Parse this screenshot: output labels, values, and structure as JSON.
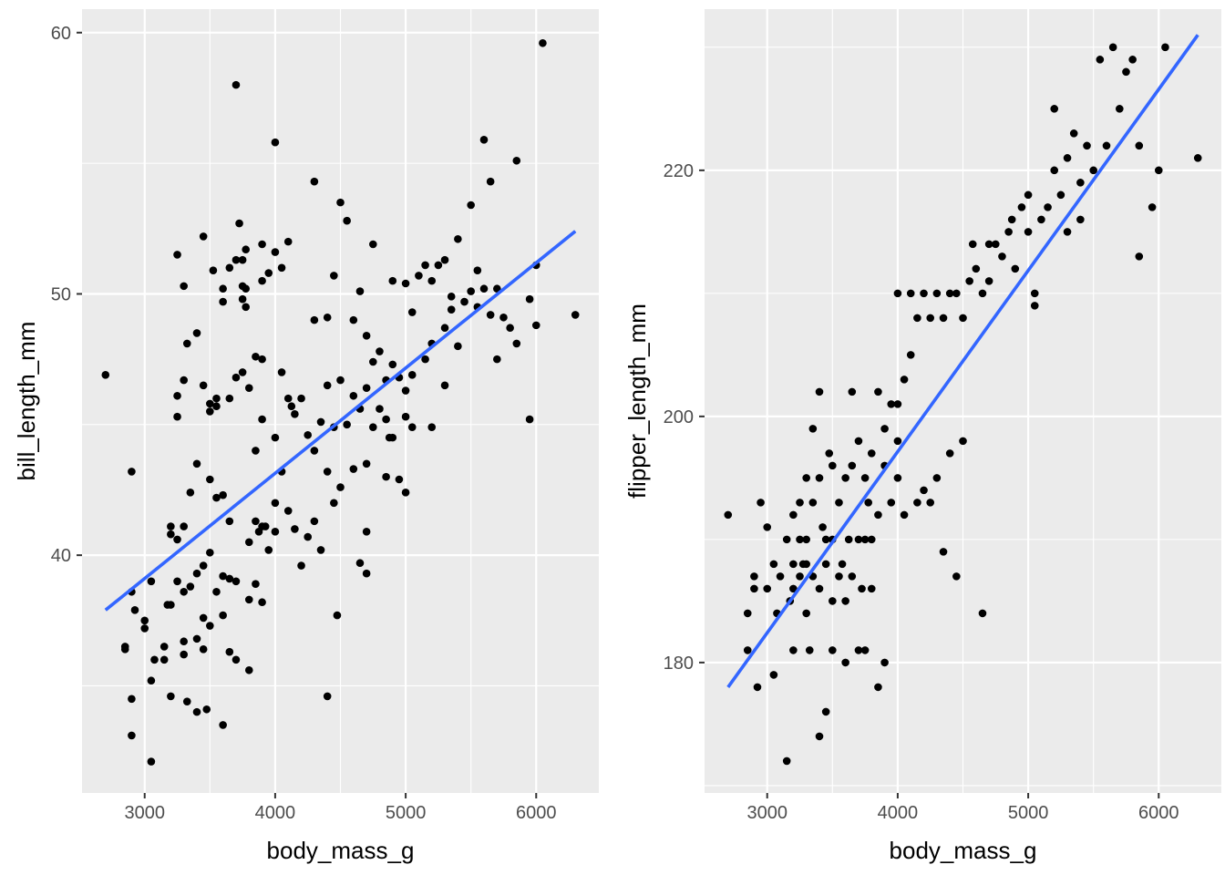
{
  "chart_data": [
    {
      "type": "scatter",
      "xlabel": "body_mass_g",
      "ylabel": "bill_length_mm",
      "xlim": [
        2520,
        6480
      ],
      "ylim": [
        30.9,
        60.9
      ],
      "x_ticks": [
        3000,
        4000,
        5000,
        6000
      ],
      "y_ticks": [
        40,
        50,
        60
      ],
      "grid": true,
      "point_color": "#000000",
      "smooth": {
        "method": "lm",
        "color": "#3366FF",
        "x": [
          2700,
          6300
        ],
        "y": [
          37.9,
          52.4
        ]
      },
      "points": [
        [
          2700,
          46.9
        ],
        [
          2850,
          36.4
        ],
        [
          2850,
          36.5
        ],
        [
          2900,
          43.2
        ],
        [
          2900,
          38.6
        ],
        [
          2900,
          34.5
        ],
        [
          2900,
          33.1
        ],
        [
          2925,
          37.9
        ],
        [
          3000,
          37.5
        ],
        [
          3000,
          37.2
        ],
        [
          3050,
          39.0
        ],
        [
          3050,
          35.2
        ],
        [
          3050,
          32.1
        ],
        [
          3075,
          36.0
        ],
        [
          3150,
          36.0
        ],
        [
          3150,
          36.5
        ],
        [
          3175,
          38.1
        ],
        [
          3200,
          41.1
        ],
        [
          3200,
          40.8
        ],
        [
          3200,
          38.1
        ],
        [
          3200,
          34.6
        ],
        [
          3250,
          51.5
        ],
        [
          3250,
          46.1
        ],
        [
          3250,
          45.3
        ],
        [
          3250,
          40.6
        ],
        [
          3250,
          39.0
        ],
        [
          3300,
          50.3
        ],
        [
          3300,
          46.7
        ],
        [
          3300,
          41.1
        ],
        [
          3300,
          38.6
        ],
        [
          3300,
          36.7
        ],
        [
          3300,
          36.2
        ],
        [
          3325,
          48.1
        ],
        [
          3325,
          34.4
        ],
        [
          3350,
          42.4
        ],
        [
          3350,
          38.8
        ],
        [
          3400,
          48.5
        ],
        [
          3400,
          43.5
        ],
        [
          3400,
          39.3
        ],
        [
          3400,
          36.8
        ],
        [
          3400,
          34.0
        ],
        [
          3450,
          52.2
        ],
        [
          3450,
          46.5
        ],
        [
          3450,
          39.6
        ],
        [
          3450,
          37.6
        ],
        [
          3450,
          36.4
        ],
        [
          3475,
          34.1
        ],
        [
          3500,
          45.8
        ],
        [
          3500,
          45.5
        ],
        [
          3500,
          42.9
        ],
        [
          3500,
          40.1
        ],
        [
          3500,
          37.3
        ],
        [
          3525,
          50.9
        ],
        [
          3550,
          46.0
        ],
        [
          3550,
          45.7
        ],
        [
          3550,
          42.2
        ],
        [
          3550,
          38.6
        ],
        [
          3600,
          50.2
        ],
        [
          3600,
          49.7
        ],
        [
          3600,
          42.3
        ],
        [
          3600,
          39.2
        ],
        [
          3600,
          37.7
        ],
        [
          3600,
          33.5
        ],
        [
          3650,
          51.0
        ],
        [
          3650,
          46.0
        ],
        [
          3650,
          41.3
        ],
        [
          3650,
          39.1
        ],
        [
          3650,
          36.3
        ],
        [
          3700,
          58.0
        ],
        [
          3700,
          51.3
        ],
        [
          3700,
          46.8
        ],
        [
          3700,
          39.0
        ],
        [
          3700,
          36.0
        ],
        [
          3725,
          52.7
        ],
        [
          3750,
          51.3
        ],
        [
          3750,
          50.3
        ],
        [
          3750,
          49.8
        ],
        [
          3750,
          47.0
        ],
        [
          3775,
          51.7
        ],
        [
          3775,
          50.2
        ],
        [
          3775,
          49.5
        ],
        [
          3800,
          46.4
        ],
        [
          3800,
          40.5
        ],
        [
          3800,
          38.3
        ],
        [
          3800,
          35.6
        ],
        [
          3850,
          47.6
        ],
        [
          3850,
          44.0
        ],
        [
          3850,
          41.3
        ],
        [
          3850,
          38.9
        ],
        [
          3875,
          40.9
        ],
        [
          3900,
          51.9
        ],
        [
          3900,
          50.5
        ],
        [
          3900,
          47.5
        ],
        [
          3900,
          45.2
        ],
        [
          3900,
          41.1
        ],
        [
          3900,
          38.2
        ],
        [
          3925,
          41.1
        ],
        [
          3950,
          50.8
        ],
        [
          3950,
          40.2
        ],
        [
          4000,
          55.8
        ],
        [
          4000,
          51.6
        ],
        [
          4000,
          44.5
        ],
        [
          4000,
          42.0
        ],
        [
          4000,
          40.9
        ],
        [
          4050,
          51.0
        ],
        [
          4050,
          47.0
        ],
        [
          4050,
          43.2
        ],
        [
          4100,
          52.0
        ],
        [
          4100,
          46.0
        ],
        [
          4100,
          41.7
        ],
        [
          4125,
          45.7
        ],
        [
          4150,
          45.4
        ],
        [
          4150,
          41.0
        ],
        [
          4200,
          46.0
        ],
        [
          4200,
          39.6
        ],
        [
          4250,
          44.6
        ],
        [
          4250,
          40.7
        ],
        [
          4300,
          54.3
        ],
        [
          4300,
          49.0
        ],
        [
          4300,
          44.0
        ],
        [
          4300,
          41.3
        ],
        [
          4350,
          45.1
        ],
        [
          4350,
          40.2
        ],
        [
          4400,
          49.1
        ],
        [
          4400,
          46.5
        ],
        [
          4400,
          43.2
        ],
        [
          4400,
          34.6
        ],
        [
          4450,
          50.7
        ],
        [
          4450,
          44.9
        ],
        [
          4450,
          42.0
        ],
        [
          4475,
          37.7
        ],
        [
          4500,
          53.5
        ],
        [
          4500,
          46.7
        ],
        [
          4500,
          42.6
        ],
        [
          4550,
          52.8
        ],
        [
          4550,
          45.0
        ],
        [
          4600,
          49.0
        ],
        [
          4600,
          46.1
        ],
        [
          4600,
          43.3
        ],
        [
          4650,
          50.1
        ],
        [
          4650,
          45.6
        ],
        [
          4650,
          39.7
        ],
        [
          4700,
          48.4
        ],
        [
          4700,
          46.4
        ],
        [
          4700,
          43.5
        ],
        [
          4700,
          40.9
        ],
        [
          4700,
          39.3
        ],
        [
          4750,
          51.9
        ],
        [
          4750,
          47.4
        ],
        [
          4750,
          44.9
        ],
        [
          4800,
          47.8
        ],
        [
          4800,
          45.6
        ],
        [
          4850,
          46.7
        ],
        [
          4850,
          45.2
        ],
        [
          4850,
          43.0
        ],
        [
          4875,
          44.5
        ],
        [
          4900,
          50.5
        ],
        [
          4900,
          47.3
        ],
        [
          4900,
          44.5
        ],
        [
          4950,
          46.8
        ],
        [
          4950,
          42.9
        ],
        [
          5000,
          50.4
        ],
        [
          5000,
          46.3
        ],
        [
          5000,
          45.3
        ],
        [
          5000,
          42.4
        ],
        [
          5050,
          49.3
        ],
        [
          5050,
          46.9
        ],
        [
          5050,
          44.9
        ],
        [
          5100,
          50.7
        ],
        [
          5150,
          51.1
        ],
        [
          5150,
          47.5
        ],
        [
          5200,
          50.5
        ],
        [
          5200,
          48.1
        ],
        [
          5200,
          44.9
        ],
        [
          5250,
          51.1
        ],
        [
          5300,
          51.3
        ],
        [
          5300,
          48.7
        ],
        [
          5300,
          46.5
        ],
        [
          5350,
          49.9
        ],
        [
          5350,
          49.4
        ],
        [
          5400,
          52.1
        ],
        [
          5400,
          48.0
        ],
        [
          5450,
          49.7
        ],
        [
          5500,
          53.4
        ],
        [
          5500,
          50.1
        ],
        [
          5550,
          50.9
        ],
        [
          5550,
          49.5
        ],
        [
          5600,
          55.9
        ],
        [
          5600,
          50.2
        ],
        [
          5650,
          54.3
        ],
        [
          5650,
          49.2
        ],
        [
          5700,
          50.2
        ],
        [
          5700,
          47.5
        ],
        [
          5750,
          49.1
        ],
        [
          5800,
          48.7
        ],
        [
          5850,
          55.1
        ],
        [
          5850,
          48.1
        ],
        [
          5950,
          49.8
        ],
        [
          5950,
          45.2
        ],
        [
          6000,
          48.8
        ],
        [
          6000,
          51.1
        ],
        [
          6050,
          59.6
        ],
        [
          6300,
          49.2
        ]
      ]
    },
    {
      "type": "scatter",
      "xlabel": "body_mass_g",
      "ylabel": "flipper_length_mm",
      "xlim": [
        2520,
        6480
      ],
      "ylim": [
        169.4,
        233.1
      ],
      "x_ticks": [
        3000,
        4000,
        5000,
        6000
      ],
      "y_ticks": [
        180,
        200,
        220
      ],
      "grid": true,
      "point_color": "#000000",
      "smooth": {
        "method": "lm",
        "color": "#3366FF",
        "x": [
          2700,
          6300
        ],
        "y": [
          178,
          231
        ]
      },
      "points": [
        [
          2700,
          192
        ],
        [
          2850,
          184
        ],
        [
          2850,
          181
        ],
        [
          2900,
          187
        ],
        [
          2900,
          186
        ],
        [
          2925,
          178
        ],
        [
          2950,
          193
        ],
        [
          3000,
          191
        ],
        [
          3000,
          186
        ],
        [
          3050,
          179
        ],
        [
          3050,
          188
        ],
        [
          3075,
          184
        ],
        [
          3100,
          187
        ],
        [
          3150,
          172
        ],
        [
          3150,
          190
        ],
        [
          3175,
          185
        ],
        [
          3200,
          188
        ],
        [
          3200,
          192
        ],
        [
          3200,
          186
        ],
        [
          3200,
          181
        ],
        [
          3250,
          187
        ],
        [
          3250,
          190
        ],
        [
          3250,
          193
        ],
        [
          3275,
          188
        ],
        [
          3300,
          195
        ],
        [
          3300,
          190
        ],
        [
          3300,
          188
        ],
        [
          3300,
          184
        ],
        [
          3325,
          181
        ],
        [
          3350,
          187
        ],
        [
          3350,
          193
        ],
        [
          3350,
          199
        ],
        [
          3400,
          202
        ],
        [
          3400,
          174
        ],
        [
          3400,
          186
        ],
        [
          3400,
          195
        ],
        [
          3425,
          191
        ],
        [
          3450,
          176
        ],
        [
          3450,
          188
        ],
        [
          3450,
          190
        ],
        [
          3475,
          197
        ],
        [
          3500,
          181
        ],
        [
          3500,
          185
        ],
        [
          3500,
          190
        ],
        [
          3500,
          196
        ],
        [
          3550,
          187
        ],
        [
          3550,
          193
        ],
        [
          3575,
          188
        ],
        [
          3600,
          180
        ],
        [
          3600,
          185
        ],
        [
          3600,
          195
        ],
        [
          3625,
          190
        ],
        [
          3650,
          202
        ],
        [
          3650,
          187
        ],
        [
          3650,
          196
        ],
        [
          3700,
          181
        ],
        [
          3700,
          190
        ],
        [
          3700,
          198
        ],
        [
          3725,
          186
        ],
        [
          3750,
          181
        ],
        [
          3750,
          190
        ],
        [
          3750,
          195
        ],
        [
          3775,
          193
        ],
        [
          3800,
          197
        ],
        [
          3800,
          190
        ],
        [
          3800,
          186
        ],
        [
          3850,
          202
        ],
        [
          3850,
          192
        ],
        [
          3850,
          178
        ],
        [
          3900,
          196
        ],
        [
          3900,
          199
        ],
        [
          3900,
          180
        ],
        [
          3950,
          201
        ],
        [
          3950,
          193
        ],
        [
          4000,
          198
        ],
        [
          4000,
          201
        ],
        [
          4000,
          210
        ],
        [
          4000,
          195
        ],
        [
          4050,
          192
        ],
        [
          4050,
          203
        ],
        [
          4100,
          210
        ],
        [
          4100,
          205
        ],
        [
          4150,
          208
        ],
        [
          4150,
          193
        ],
        [
          4200,
          210
        ],
        [
          4200,
          194
        ],
        [
          4250,
          193
        ],
        [
          4250,
          208
        ],
        [
          4300,
          210
        ],
        [
          4300,
          195
        ],
        [
          4350,
          208
        ],
        [
          4350,
          189
        ],
        [
          4400,
          210
        ],
        [
          4400,
          197
        ],
        [
          4450,
          210
        ],
        [
          4450,
          187
        ],
        [
          4500,
          208
        ],
        [
          4500,
          198
        ],
        [
          4550,
          211
        ],
        [
          4575,
          214
        ],
        [
          4600,
          212
        ],
        [
          4650,
          210
        ],
        [
          4650,
          184
        ],
        [
          4700,
          214
        ],
        [
          4700,
          211
        ],
        [
          4750,
          214
        ],
        [
          4800,
          213
        ],
        [
          4850,
          215
        ],
        [
          4875,
          216
        ],
        [
          4900,
          212
        ],
        [
          4950,
          217
        ],
        [
          5000,
          215
        ],
        [
          5000,
          218
        ],
        [
          5050,
          210
        ],
        [
          5050,
          209
        ],
        [
          5100,
          216
        ],
        [
          5150,
          217
        ],
        [
          5200,
          220
        ],
        [
          5200,
          225
        ],
        [
          5250,
          218
        ],
        [
          5300,
          221
        ],
        [
          5300,
          215
        ],
        [
          5350,
          223
        ],
        [
          5400,
          219
        ],
        [
          5400,
          216
        ],
        [
          5450,
          222
        ],
        [
          5500,
          220
        ],
        [
          5550,
          229
        ],
        [
          5600,
          222
        ],
        [
          5650,
          230
        ],
        [
          5700,
          225
        ],
        [
          5750,
          228
        ],
        [
          5800,
          229
        ],
        [
          5850,
          213
        ],
        [
          5850,
          222
        ],
        [
          5950,
          217
        ],
        [
          6000,
          220
        ],
        [
          6050,
          230
        ],
        [
          6300,
          221
        ]
      ]
    }
  ]
}
